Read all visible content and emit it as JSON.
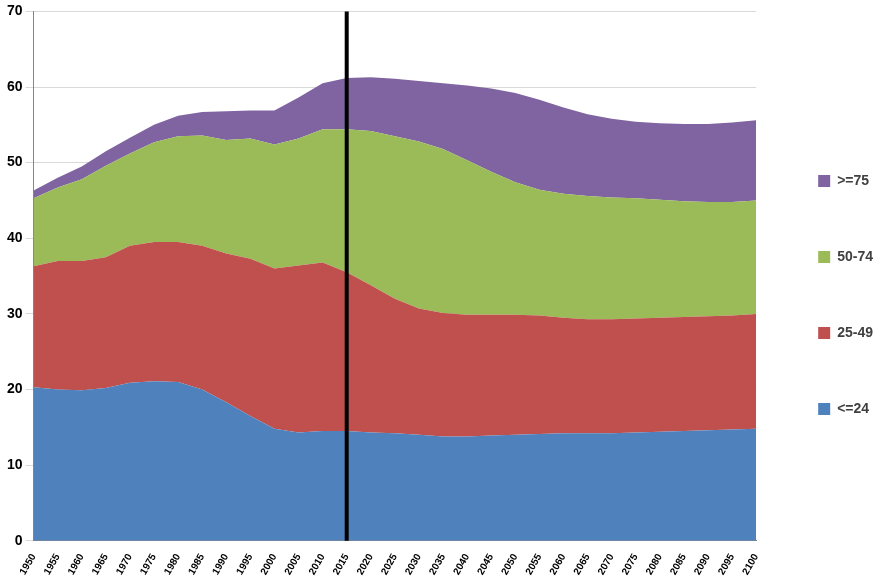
{
  "chart_data": {
    "type": "area",
    "stacked": true,
    "grid": true,
    "legend": "right",
    "x": [
      1950,
      1955,
      1960,
      1965,
      1970,
      1975,
      1980,
      1985,
      1990,
      1995,
      2000,
      2005,
      2010,
      2015,
      2020,
      2025,
      2030,
      2035,
      2040,
      2045,
      2050,
      2055,
      2060,
      2065,
      2070,
      2075,
      2080,
      2085,
      2090,
      2095,
      2100
    ],
    "xlim": [
      1950,
      2100
    ],
    "xticks": [
      1950,
      1955,
      1960,
      1965,
      1970,
      1975,
      1980,
      1985,
      1990,
      1995,
      2000,
      2005,
      2010,
      2015,
      2020,
      2025,
      2030,
      2035,
      2040,
      2045,
      2050,
      2055,
      2060,
      2065,
      2070,
      2075,
      2080,
      2085,
      2090,
      2095,
      2100
    ],
    "ylim": [
      0,
      70
    ],
    "yticks": [
      0,
      10,
      20,
      30,
      40,
      50,
      60,
      70
    ],
    "vline": 2015,
    "series": [
      {
        "name": "<=24",
        "color": "#4f81bd",
        "values": [
          20.3,
          20.0,
          19.9,
          20.2,
          20.9,
          21.1,
          21.0,
          20.0,
          18.3,
          16.5,
          14.8,
          14.3,
          14.5,
          14.5,
          14.3,
          14.2,
          14.0,
          13.8,
          13.8,
          13.9,
          14.0,
          14.1,
          14.2,
          14.2,
          14.2,
          14.3,
          14.4,
          14.5,
          14.6,
          14.7,
          14.8
        ]
      },
      {
        "name": "25-49",
        "color": "#c0504d",
        "values": [
          16.0,
          17.0,
          17.1,
          17.3,
          18.1,
          18.4,
          18.5,
          19.0,
          19.7,
          20.8,
          21.2,
          22.1,
          22.3,
          21.0,
          19.5,
          17.8,
          16.7,
          16.3,
          16.1,
          16.0,
          15.9,
          15.7,
          15.3,
          15.1,
          15.1,
          15.1,
          15.1,
          15.1,
          15.1,
          15.1,
          15.2
        ]
      },
      {
        "name": "50-74",
        "color": "#9bbb59",
        "values": [
          9.0,
          9.7,
          10.8,
          12.1,
          12.2,
          13.2,
          14.0,
          14.6,
          15.0,
          15.9,
          16.4,
          16.8,
          17.6,
          18.9,
          20.4,
          21.5,
          22.1,
          21.7,
          20.4,
          18.9,
          17.5,
          16.6,
          16.4,
          16.3,
          16.1,
          15.9,
          15.6,
          15.3,
          15.1,
          15.0,
          15.0
        ]
      },
      {
        "name": ">=75",
        "color": "#8064a2",
        "values": [
          1.0,
          1.3,
          1.7,
          1.9,
          2.1,
          2.3,
          2.7,
          3.1,
          3.8,
          3.7,
          4.5,
          5.4,
          6.1,
          6.8,
          7.1,
          7.6,
          8.0,
          8.7,
          9.9,
          11.0,
          11.8,
          11.9,
          11.4,
          10.8,
          10.4,
          10.1,
          10.1,
          10.2,
          10.3,
          10.5,
          10.6
        ]
      }
    ]
  }
}
